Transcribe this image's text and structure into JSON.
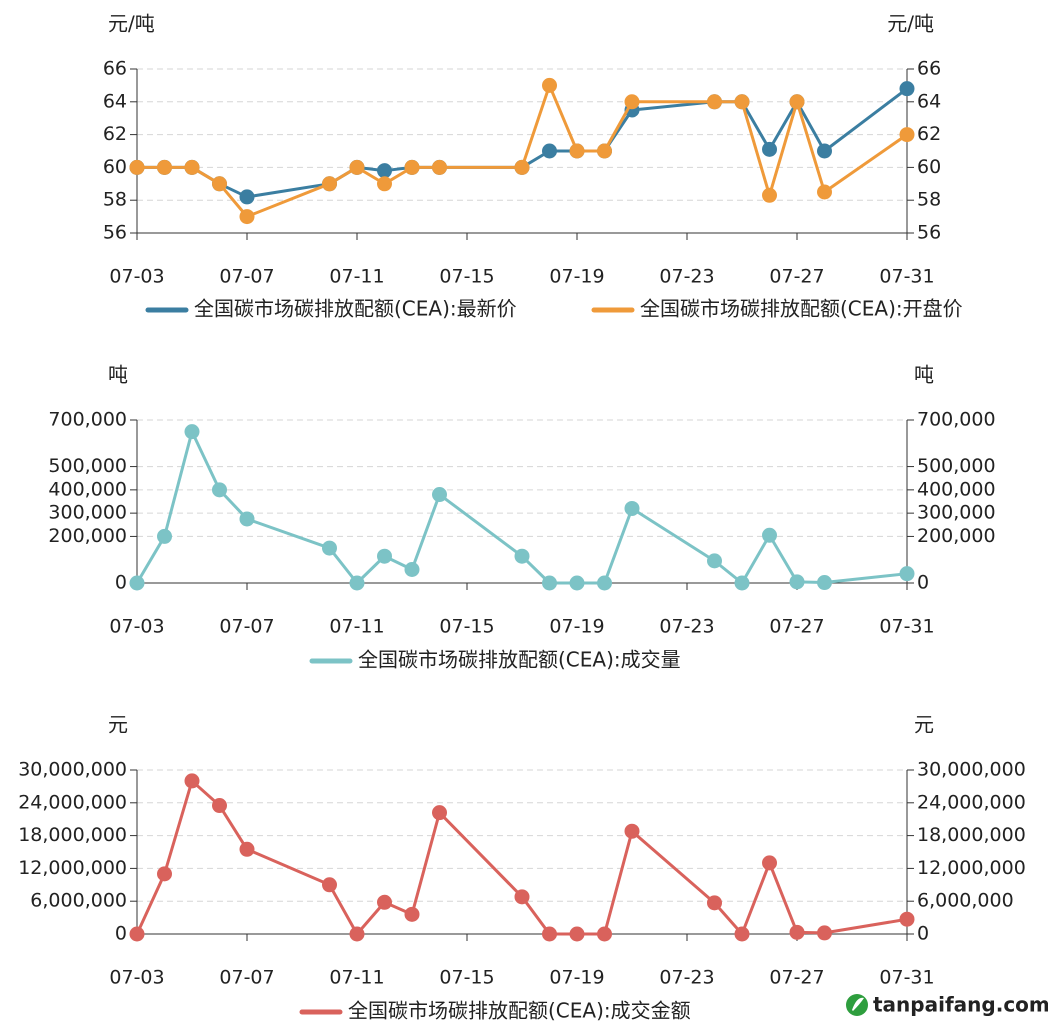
{
  "watermark": {
    "text": "tanpaifang.com",
    "color": "#2e9e3e"
  },
  "chart_data": [
    {
      "type": "line",
      "unit_left": "元/吨",
      "unit_right": "元/吨",
      "x": [
        "07-03",
        "07-04",
        "07-05",
        "07-06",
        "07-07",
        "07-10",
        "07-11",
        "07-12",
        "07-13",
        "07-14",
        "07-17",
        "07-18",
        "07-19",
        "07-20",
        "07-21",
        "07-24",
        "07-25",
        "07-26",
        "07-27",
        "07-28",
        "07-31"
      ],
      "x_ticks": [
        "07-03",
        "07-07",
        "07-11",
        "07-15",
        "07-19",
        "07-23",
        "07-27",
        "07-31"
      ],
      "ylim": [
        56,
        66
      ],
      "y_ticks": [
        56,
        58,
        60,
        62,
        64,
        66
      ],
      "y_tick_labels": [
        "56",
        "58",
        "60",
        "62",
        "64",
        "66"
      ],
      "grid": true,
      "legend_position": "bottom",
      "series": [
        {
          "name": "全国碳市场碳排放配额(CEA):最新价",
          "color": "#3b7ea1",
          "values": [
            60,
            60,
            60,
            59,
            58.2,
            59,
            60,
            59.8,
            60,
            60,
            60,
            61,
            61,
            61,
            63.5,
            64,
            64,
            61.1,
            64,
            61,
            64.8
          ]
        },
        {
          "name": "全国碳市场碳排放配额(CEA):开盘价",
          "color": "#ef9a3a",
          "values": [
            60,
            60,
            60,
            59,
            57,
            59,
            60,
            59,
            60,
            60,
            60,
            65,
            61,
            61,
            64,
            64,
            64,
            58.3,
            64,
            58.5,
            62
          ]
        }
      ]
    },
    {
      "type": "line",
      "unit_left": "吨",
      "unit_right": "吨",
      "x": [
        "07-03",
        "07-04",
        "07-05",
        "07-06",
        "07-07",
        "07-10",
        "07-11",
        "07-12",
        "07-13",
        "07-14",
        "07-17",
        "07-18",
        "07-19",
        "07-20",
        "07-21",
        "07-24",
        "07-25",
        "07-26",
        "07-27",
        "07-28",
        "07-31"
      ],
      "x_ticks": [
        "07-03",
        "07-07",
        "07-11",
        "07-15",
        "07-19",
        "07-23",
        "07-27",
        "07-31"
      ],
      "ylim": [
        0,
        700000
      ],
      "y_ticks": [
        0,
        200000,
        300000,
        400000,
        500000,
        700000
      ],
      "y_tick_labels": [
        "0",
        "200,000",
        "300,000",
        "400,000",
        "500,000",
        "700,000"
      ],
      "grid": true,
      "legend_position": "bottom",
      "series": [
        {
          "name": "全国碳市场碳排放配额(CEA):成交量",
          "color": "#7cc3c6",
          "values": [
            0,
            200000,
            650000,
            400000,
            275000,
            150000,
            0,
            115000,
            58000,
            380000,
            115000,
            0,
            0,
            0,
            320000,
            95000,
            0,
            205000,
            5000,
            2000,
            40000
          ]
        }
      ]
    },
    {
      "type": "line",
      "unit_left": "元",
      "unit_right": "元",
      "x": [
        "07-03",
        "07-04",
        "07-05",
        "07-06",
        "07-07",
        "07-10",
        "07-11",
        "07-12",
        "07-13",
        "07-14",
        "07-17",
        "07-18",
        "07-19",
        "07-20",
        "07-21",
        "07-24",
        "07-25",
        "07-26",
        "07-27",
        "07-28",
        "07-31"
      ],
      "x_ticks": [
        "07-03",
        "07-07",
        "07-11",
        "07-15",
        "07-19",
        "07-23",
        "07-27",
        "07-31"
      ],
      "ylim": [
        0,
        30000000
      ],
      "y_ticks": [
        0,
        6000000,
        12000000,
        18000000,
        24000000,
        30000000
      ],
      "y_tick_labels": [
        "0",
        "6,000,000",
        "12,000,000",
        "18,000,000",
        "24,000,000",
        "30,000,000"
      ],
      "grid": true,
      "legend_position": "bottom",
      "series": [
        {
          "name": "全国碳市场碳排放配额(CEA):成交金额",
          "color": "#d9625c",
          "values": [
            0,
            11000000,
            28000000,
            23500000,
            15500000,
            9000000,
            0,
            5800000,
            3600000,
            22200000,
            6800000,
            0,
            0,
            0,
            18800000,
            5700000,
            0,
            13000000,
            300000,
            200000,
            2700000
          ]
        }
      ]
    }
  ]
}
